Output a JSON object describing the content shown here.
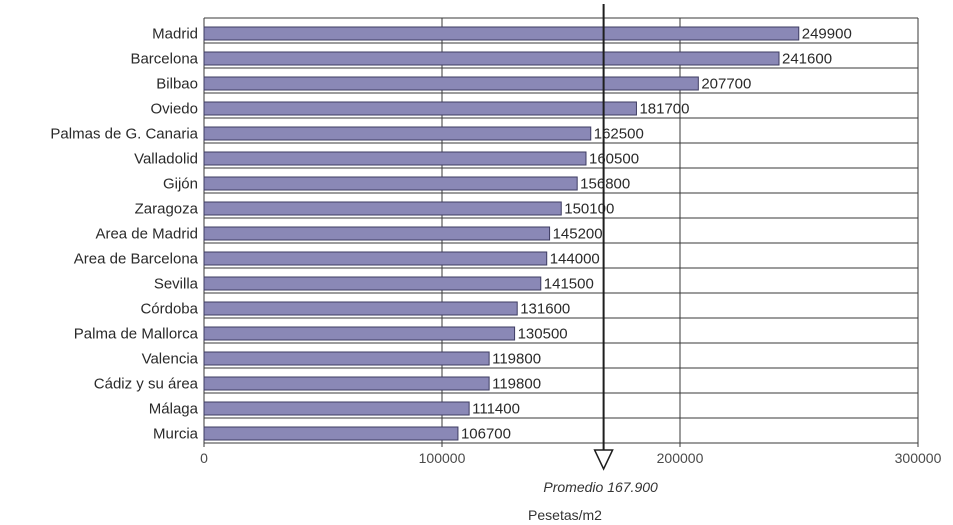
{
  "chart_data": {
    "type": "bar",
    "orientation": "horizontal",
    "categories": [
      "Madrid",
      "Barcelona",
      "Bilbao",
      "Oviedo",
      "Palmas de G. Canaria",
      "Valladolid",
      "Gijón",
      "Zaragoza",
      "Area de Madrid",
      "Area de Barcelona",
      "Sevilla",
      "Córdoba",
      "Palma de Mallorca",
      "Valencia",
      "Cádiz y su área",
      "Málaga",
      "Murcia"
    ],
    "values": [
      249900,
      241600,
      207700,
      181700,
      162500,
      160500,
      156800,
      150100,
      145200,
      144000,
      141500,
      131600,
      130500,
      119800,
      119800,
      111400,
      106700
    ],
    "value_labels": [
      "249900",
      "241600",
      "207700",
      "181700",
      "162500",
      "160500",
      "156800",
      "150100",
      "145200",
      "144000",
      "141500",
      "131600",
      "130500",
      "119800",
      "119800",
      "111400",
      "106700"
    ],
    "xlim": [
      0,
      300000
    ],
    "xticks": [
      0,
      100000,
      200000,
      300000
    ],
    "xtick_labels": [
      "0",
      "100000",
      "200000",
      "300000"
    ],
    "xlabel": "Pesetas/m2",
    "average": {
      "value": 167900,
      "label": "Promedio 167.900"
    },
    "grid": true,
    "bar_color": "#8a88b6",
    "bar_stroke": "#3e3c62"
  }
}
